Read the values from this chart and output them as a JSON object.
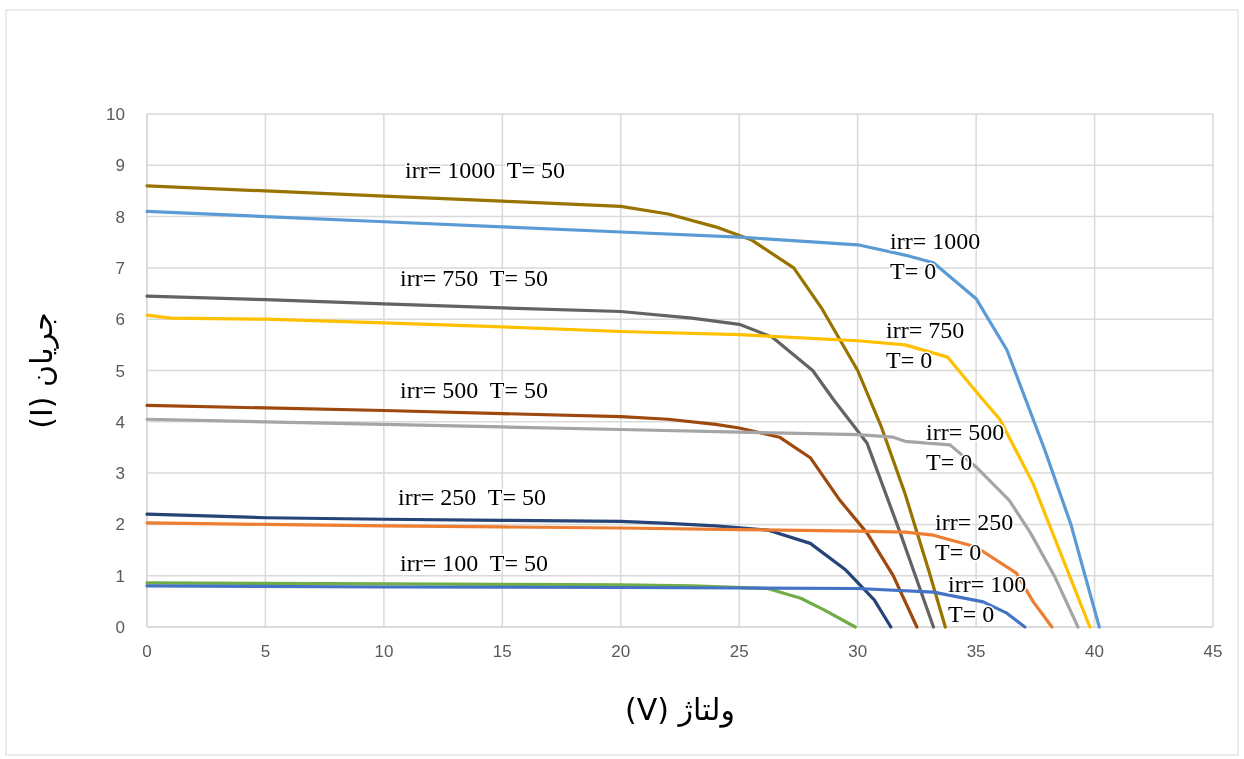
{
  "chart_data": {
    "type": "line",
    "xlabel": "ولتاژ (V)",
    "ylabel": "جریان (I)",
    "xlim": [
      0,
      45
    ],
    "ylim": [
      0,
      10
    ],
    "xticks": [
      0,
      5,
      10,
      15,
      20,
      25,
      30,
      35,
      40,
      45
    ],
    "yticks": [
      0,
      1,
      2,
      3,
      4,
      5,
      6,
      7,
      8,
      9,
      10
    ],
    "grid": true,
    "line_style": "solid",
    "series": [
      {
        "color": "#997300",
        "x": [
          0,
          5,
          10,
          15,
          20,
          22,
          24,
          25.5,
          27.3,
          28.5,
          30,
          31,
          32,
          33,
          33.7
        ],
        "values": [
          8.6,
          8.5,
          8.4,
          8.3,
          8.2,
          8.05,
          7.8,
          7.55,
          7.0,
          6.2,
          5.0,
          3.9,
          2.6,
          1.1,
          0
        ]
      },
      {
        "color": "#5b9bd5",
        "x": [
          0,
          5,
          10,
          15,
          20,
          25,
          30,
          32,
          33.2,
          35,
          36.3,
          37.9,
          39,
          40.2
        ],
        "values": [
          8.1,
          8.0,
          7.9,
          7.8,
          7.7,
          7.6,
          7.45,
          7.25,
          7.1,
          6.4,
          5.4,
          3.45,
          2.0,
          0
        ]
      },
      {
        "color": "#636363",
        "x": [
          0,
          5,
          10,
          15,
          20,
          23,
          25,
          26.4,
          28.1,
          29,
          30.4,
          31.8,
          33.2
        ],
        "values": [
          6.45,
          6.38,
          6.3,
          6.22,
          6.15,
          6.02,
          5.9,
          5.65,
          5.0,
          4.42,
          3.58,
          1.83,
          0
        ]
      },
      {
        "color": "#ffc000",
        "x": [
          0,
          1,
          5,
          10,
          15,
          20,
          25,
          30,
          32,
          33.8,
          35.2,
          36,
          37.4,
          38.6,
          39.8
        ],
        "values": [
          6.08,
          6.02,
          6.0,
          5.93,
          5.85,
          5.76,
          5.7,
          5.58,
          5.5,
          5.26,
          4.48,
          4.05,
          2.8,
          1.4,
          0
        ]
      },
      {
        "color": "#9e480e",
        "x": [
          0,
          5,
          10,
          15,
          20,
          22,
          24,
          25,
          26.7,
          28,
          29.25,
          30.4,
          31.5,
          32.5
        ],
        "values": [
          4.32,
          4.27,
          4.22,
          4.16,
          4.1,
          4.05,
          3.95,
          3.88,
          3.7,
          3.3,
          2.47,
          1.83,
          1.0,
          0
        ]
      },
      {
        "color": "#a5a5a5",
        "x": [
          0,
          5,
          10,
          15,
          20,
          25,
          30,
          31.5,
          32,
          33.9,
          35,
          36.4,
          37.3,
          38.3,
          39.3
        ],
        "values": [
          4.05,
          4.0,
          3.95,
          3.9,
          3.85,
          3.8,
          3.75,
          3.7,
          3.62,
          3.55,
          3.12,
          2.47,
          1.83,
          1.0,
          0
        ]
      },
      {
        "color": "#264478",
        "x": [
          0,
          5,
          10,
          15,
          20,
          22,
          24,
          26.2,
          28,
          29.5,
          30.7,
          31.4
        ],
        "values": [
          2.2,
          2.13,
          2.1,
          2.08,
          2.06,
          2.02,
          1.97,
          1.89,
          1.63,
          1.11,
          0.53,
          0
        ]
      },
      {
        "color": "#ed7d31",
        "x": [
          0,
          5,
          10,
          15,
          20,
          25,
          30,
          32,
          33.2,
          35,
          36.7,
          37.4,
          38.2
        ],
        "values": [
          2.03,
          2.0,
          1.97,
          1.95,
          1.93,
          1.9,
          1.87,
          1.85,
          1.79,
          1.56,
          1.05,
          0.5,
          0
        ]
      },
      {
        "color": "#70ad47",
        "x": [
          0,
          5,
          10,
          15,
          20,
          23,
          26.2,
          27.6,
          28.6,
          29.9
        ],
        "values": [
          0.86,
          0.85,
          0.84,
          0.83,
          0.82,
          0.8,
          0.75,
          0.56,
          0.33,
          0
        ]
      },
      {
        "color": "#4472c4",
        "x": [
          0,
          10,
          20,
          25,
          30,
          33.2,
          35.3,
          36.3,
          37.06
        ],
        "values": [
          0.8,
          0.78,
          0.77,
          0.76,
          0.75,
          0.68,
          0.49,
          0.27,
          0
        ]
      }
    ],
    "annotations": [
      "irr= 1000  T= 50",
      "irr= 750  T= 50",
      "irr= 500  T= 50",
      "irr= 250  T= 50",
      "irr= 100  T= 50",
      "irr= 1000\nT= 0",
      "irr= 750\nT= 0",
      "irr= 500\nT= 0",
      "irr= 250\nT= 0",
      "irr= 100\nT= 0"
    ]
  }
}
